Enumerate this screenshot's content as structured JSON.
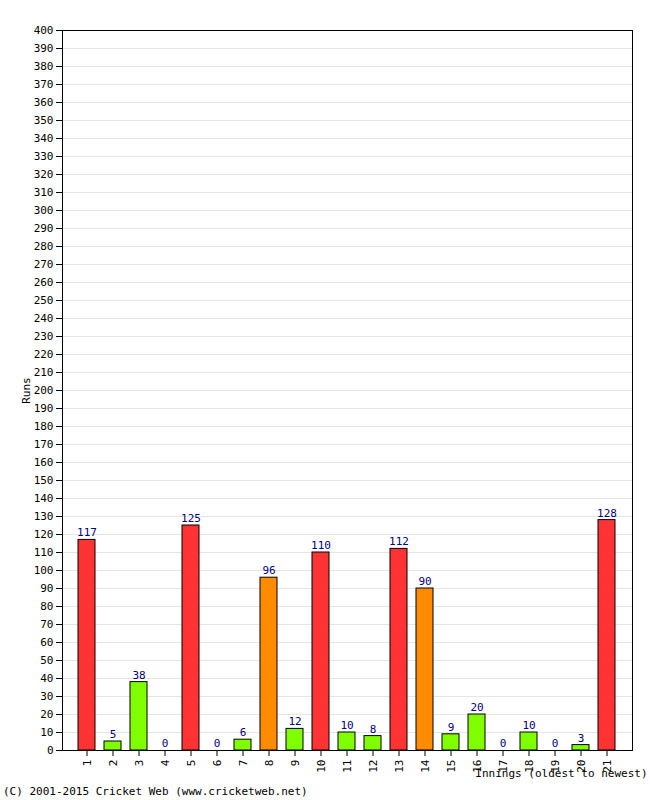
{
  "chart_data": {
    "type": "bar",
    "categories": [
      "1",
      "2",
      "3",
      "4",
      "5",
      "6",
      "7",
      "8",
      "9",
      "10",
      "11",
      "12",
      "13",
      "14",
      "15",
      "16",
      "17",
      "18",
      "19",
      "20",
      "21"
    ],
    "values": [
      117,
      5,
      38,
      0,
      125,
      0,
      6,
      96,
      12,
      110,
      10,
      8,
      112,
      90,
      9,
      20,
      0,
      10,
      0,
      3,
      128
    ],
    "colors": [
      "#ff3333",
      "#80ff00",
      "#80ff00",
      "#80ff00",
      "#ff3333",
      "#80ff00",
      "#80ff00",
      "#ff8c00",
      "#80ff00",
      "#ff3333",
      "#80ff00",
      "#80ff00",
      "#ff3333",
      "#ff8c00",
      "#80ff00",
      "#80ff00",
      "#80ff00",
      "#80ff00",
      "#80ff00",
      "#80ff00",
      "#ff3333"
    ],
    "x_label": "Innings (oldest to newest)",
    "y_label": "Runs",
    "caption": "(C) 2001-2015 Cricket Web (www.cricketweb.net)",
    "ylim": [
      0,
      400
    ],
    "yticks": [
      0,
      10,
      20,
      30,
      40,
      50,
      60,
      70,
      80,
      90,
      100,
      110,
      120,
      130,
      140,
      150,
      160,
      170,
      180,
      190,
      200,
      210,
      220,
      230,
      240,
      250,
      260,
      270,
      280,
      290,
      300,
      310,
      320,
      330,
      340,
      350,
      360,
      370,
      380,
      390,
      400
    ],
    "grid": true,
    "data_labels": true
  }
}
